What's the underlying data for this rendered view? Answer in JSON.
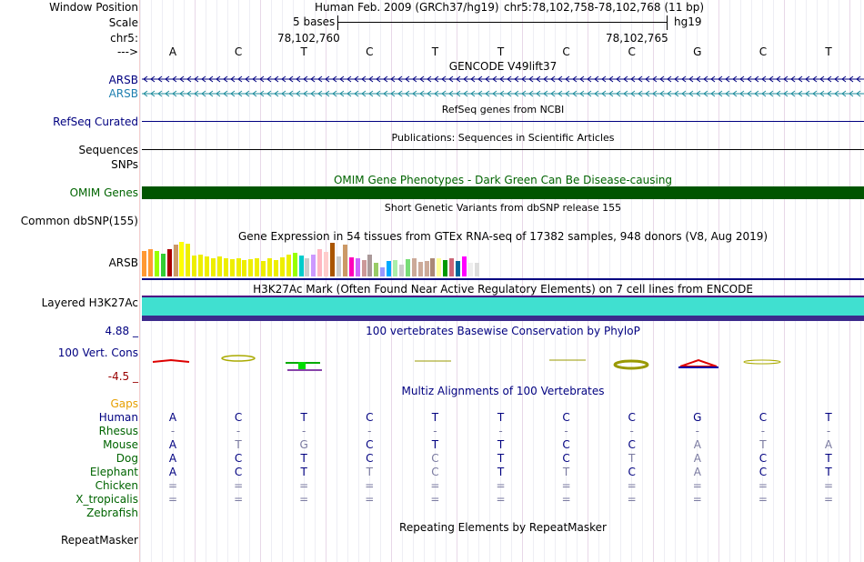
{
  "header": {
    "labels": {
      "window_position": "Window Position",
      "scale": "Scale",
      "chrom": "chr5:",
      "strand": "--->"
    },
    "assembly": "Human Feb. 2009 (GRCh37/hg19)",
    "position": "chr5:78,102,758-78,102,768 (11 bp)",
    "scale_label": "5 bases",
    "scale_db": "hg19",
    "coord_left": "78,102,760",
    "coord_right": "78,102,765"
  },
  "sequence": [
    "A",
    "C",
    "T",
    "C",
    "T",
    "T",
    "C",
    "C",
    "G",
    "C",
    "T"
  ],
  "tracks": {
    "gencode_title": "GENCODE V49lift37",
    "arsb_1": "ARSB",
    "arsb_2": "ARSB",
    "refseq_label": "RefSeq Curated",
    "refseq_title": "RefSeq genes from NCBI",
    "sequences_label": "Sequences",
    "pubs_title": "Publications: Sequences in Scientific Articles",
    "snps_label": "SNPs",
    "omim_title": "OMIM Gene Phenotypes - Dark Green Can Be Disease-causing",
    "omim_label": "OMIM Genes",
    "dbsnp_title": "Short Genetic Variants from dbSNP release 155",
    "dbsnp_label": "Common dbSNP(155)",
    "gtex_title": "Gene Expression in 54 tissues from GTEx RNA-seq of 17382 samples, 948 donors (V8, Aug 2019)",
    "gtex_label": "ARSB",
    "h3k27_title": "H3K27Ac Mark (Often Found Near Active Regulatory Elements) on 7 cell lines from ENCODE",
    "h3k27_label": "Layered H3K27Ac",
    "phylop_max": "4.88 _",
    "phylop_title": "100 vertebrates Basewise Conservation by PhyloP",
    "phylop_label": "100 Vert. Cons",
    "phylop_min": "-4.5 _",
    "multiz_title": "Multiz Alignments of 100 Vertebrates",
    "rmsk_title": "Repeating Elements by RepeatMasker",
    "rmsk_label": "RepeatMasker"
  },
  "colors": {
    "navy": "#000080",
    "omim": "#006400",
    "teal": "#40E0D0",
    "gaps": "#E69F00",
    "species": "#006400",
    "conserved": "#000080",
    "diff": "#7A7AA0"
  },
  "gtex_values": [
    28,
    30,
    28,
    25,
    30,
    35,
    38,
    36,
    23,
    24,
    22,
    20,
    22,
    20,
    19,
    20,
    18,
    19,
    20,
    17,
    20,
    18,
    21,
    24,
    26,
    23,
    20,
    24,
    30,
    27,
    37,
    22,
    35,
    21,
    20,
    18,
    24,
    15,
    10,
    17,
    18,
    13,
    19,
    20,
    16,
    17,
    20,
    20,
    18,
    20,
    17,
    22,
    15,
    15
  ],
  "gtex_colors": [
    "#FF9933",
    "#FF9933",
    "#99FF00",
    "#33CC33",
    "#AA0000",
    "#CC9966",
    "#FFFF00",
    "#EEEE00",
    "#EEEE00",
    "#EEEE00",
    "#EEEE00",
    "#EEEE00",
    "#EEEE00",
    "#EEEE00",
    "#EEEE00",
    "#EEEE00",
    "#EEEE00",
    "#EEEE00",
    "#EEEE00",
    "#EEEE00",
    "#EEEE00",
    "#EEEE00",
    "#EEEE00",
    "#EEEE00",
    "#99FF00",
    "#00CCCC",
    "#CCCCCC",
    "#CC99FF",
    "#FFB6C1",
    "#FFCCCC",
    "#AA5500",
    "#CCCCCC",
    "#CC9966",
    "#FF00BB",
    "#CC66FF",
    "#CC9999",
    "#AA9999",
    "#99CC66",
    "#9999FF",
    "#00AAFF",
    "#AAEEAA",
    "#CCCCCC",
    "#77DD77",
    "#CCAA99",
    "#CCAA99",
    "#CCAA99",
    "#AA8877",
    "#FFFF99",
    "#009900",
    "#CC6677",
    "#006699",
    "#FF00FF",
    "#EEEEEE",
    "#DDDDDD"
  ],
  "species": [
    {
      "name": "Human",
      "color": "#000080",
      "bases": [
        "A",
        "C",
        "T",
        "C",
        "T",
        "T",
        "C",
        "C",
        "G",
        "C",
        "T"
      ],
      "match": [
        1,
        1,
        1,
        1,
        1,
        1,
        1,
        1,
        1,
        1,
        1
      ]
    },
    {
      "name": "Rhesus",
      "color": "#006400",
      "bases": [
        "-",
        "-",
        "-",
        "-",
        "-",
        "-",
        "-",
        "-",
        "-",
        "-",
        "-"
      ],
      "match": [
        0,
        0,
        0,
        0,
        0,
        0,
        0,
        0,
        0,
        0,
        0
      ]
    },
    {
      "name": "Mouse",
      "color": "#006400",
      "bases": [
        "A",
        "T",
        "G",
        "C",
        "T",
        "T",
        "C",
        "C",
        "A",
        "T",
        "A"
      ],
      "match": [
        1,
        0,
        0,
        1,
        1,
        1,
        1,
        1,
        0,
        0,
        0
      ]
    },
    {
      "name": "Dog",
      "color": "#006400",
      "bases": [
        "A",
        "C",
        "T",
        "C",
        "C",
        "T",
        "C",
        "T",
        "A",
        "C",
        "T"
      ],
      "match": [
        1,
        1,
        1,
        1,
        0,
        1,
        1,
        0,
        0,
        1,
        1
      ]
    },
    {
      "name": "Elephant",
      "color": "#006400",
      "bases": [
        "A",
        "C",
        "T",
        "T",
        "C",
        "T",
        "T",
        "C",
        "A",
        "C",
        "T"
      ],
      "match": [
        1,
        1,
        1,
        0,
        0,
        1,
        0,
        1,
        0,
        1,
        1
      ]
    },
    {
      "name": "Chicken",
      "color": "#006400",
      "bases": [
        "=",
        "=",
        "=",
        "=",
        "=",
        "=",
        "=",
        "=",
        "=",
        "=",
        "="
      ],
      "match": [
        0,
        0,
        0,
        0,
        0,
        0,
        0,
        0,
        0,
        0,
        0
      ]
    },
    {
      "name": "X_tropicalis",
      "color": "#006400",
      "bases": [
        "=",
        "=",
        "=",
        "=",
        "=",
        "=",
        "=",
        "=",
        "=",
        "=",
        "="
      ],
      "match": [
        0,
        0,
        0,
        0,
        0,
        0,
        0,
        0,
        0,
        0,
        0
      ]
    },
    {
      "name": "Zebrafish",
      "color": "#006400",
      "bases": [
        "",
        "",
        "",
        "",
        "",
        "",
        "",
        "",
        "",
        "",
        ""
      ],
      "match": [
        0,
        0,
        0,
        0,
        0,
        0,
        0,
        0,
        0,
        0,
        0
      ]
    }
  ],
  "gaps_label": "Gaps"
}
